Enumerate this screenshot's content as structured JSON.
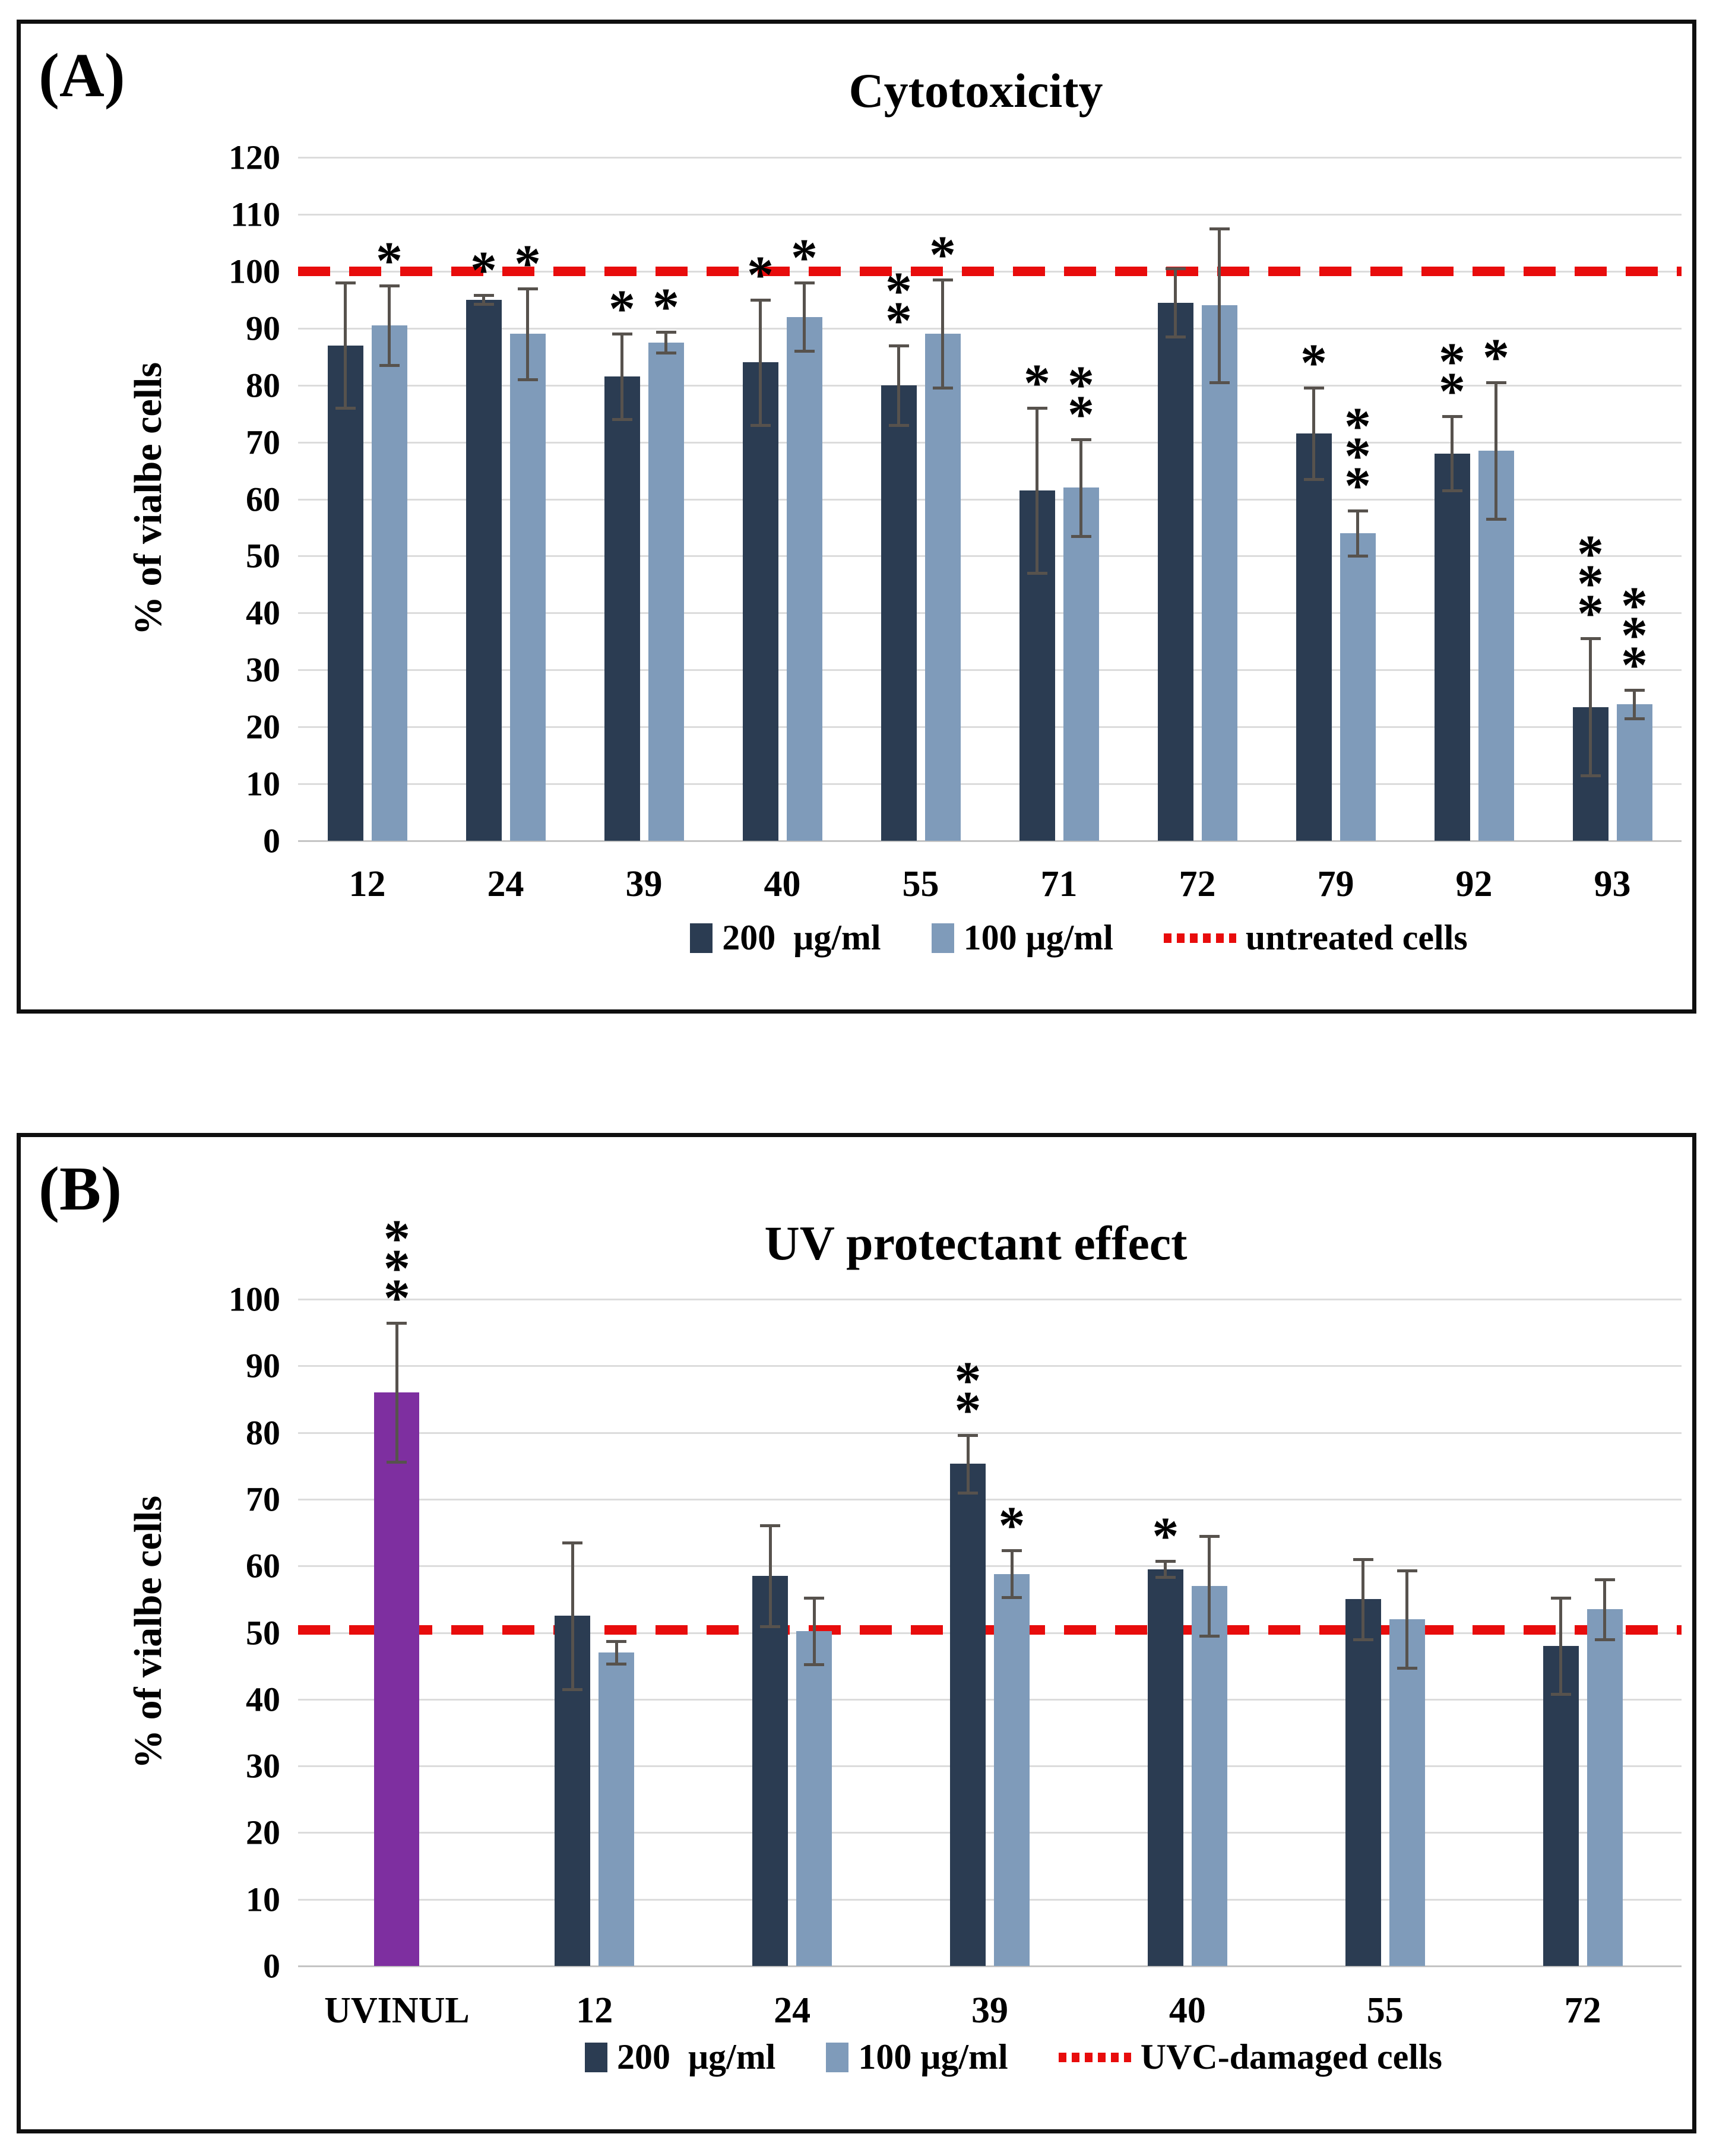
{
  "figure": {
    "background": "#ffffff",
    "border_color": "#0f0f0f"
  },
  "colors": {
    "series_200": "#2b3c52",
    "series_100": "#7f9bba",
    "uvinul_bar": "#7e2fa0",
    "reference_line": "#e80c0c",
    "error_bar": "#57524d",
    "gridline": "#dcdcdc"
  },
  "chart_data": [
    {
      "panel_label": "(A)",
      "type": "bar",
      "title": "Cytotoxicity",
      "ylabel": "% of vialbe cells",
      "ylim": [
        0,
        120
      ],
      "ytick_step": 10,
      "grid": true,
      "legend_position": "bottom",
      "categories": [
        "12",
        "24",
        "39",
        "40",
        "55",
        "71",
        "72",
        "79",
        "92",
        "93"
      ],
      "series": [
        {
          "name": "200  μg/ml",
          "color": "#2b3c52",
          "values": [
            87,
            95,
            81.5,
            84,
            80,
            61.5,
            94.5,
            71.5,
            68,
            23.5
          ],
          "errors": [
            11,
            0.8,
            7.5,
            11,
            7,
            14.5,
            6,
            8,
            6.5,
            12
          ],
          "stars": [
            "",
            "*",
            "*",
            "*",
            "**",
            "*",
            "",
            "*",
            "**",
            "***"
          ]
        },
        {
          "name": "100 μg/ml",
          "color": "#7f9bba",
          "values": [
            90.5,
            89,
            87.5,
            92,
            89,
            62,
            94,
            54,
            68.5,
            24
          ],
          "errors": [
            7,
            8,
            1.8,
            6,
            9.5,
            8.5,
            13.5,
            4,
            12,
            2.5
          ],
          "stars": [
            "*",
            "*",
            "*",
            "*",
            "*",
            "**",
            "",
            "***",
            "*",
            "***"
          ]
        }
      ],
      "highlight_bars": [],
      "reference_line": {
        "value": 100,
        "label": "untreated cells",
        "color": "#e80c0c",
        "style": "dashed"
      }
    },
    {
      "panel_label": "(B)",
      "type": "bar",
      "title": "UV protectant effect",
      "ylabel": "% of vialbe cells",
      "ylim": [
        0,
        100
      ],
      "ytick_step": 10,
      "grid": true,
      "legend_position": "bottom",
      "categories": [
        "UVINUL",
        "12",
        "24",
        "39",
        "40",
        "55",
        "72"
      ],
      "series": [
        {
          "name": "200  μg/ml",
          "color": "#2b3c52",
          "values": [
            null,
            52.5,
            58.5,
            75.3,
            59.5,
            55,
            48
          ],
          "errors": [
            null,
            11,
            7.6,
            4.3,
            1.2,
            6,
            7.2
          ],
          "stars": [
            "",
            "",
            "",
            "**",
            "*",
            "",
            ""
          ]
        },
        {
          "name": "100 μg/ml",
          "color": "#7f9bba",
          "values": [
            null,
            47,
            50.2,
            58.8,
            57,
            52,
            53.5
          ],
          "errors": [
            null,
            1.7,
            5,
            3.5,
            7.5,
            7.3,
            4.5
          ],
          "stars": [
            "",
            "",
            "",
            "*",
            "",
            "",
            ""
          ]
        }
      ],
      "highlight_bars": [
        {
          "category": "UVINUL",
          "value": 86,
          "error": 10.4,
          "stars": "***",
          "color": "#7e2fa0"
        }
      ],
      "reference_line": {
        "value": 50.4,
        "label": "UVC-damaged cells",
        "color": "#e80c0c",
        "style": "dashed"
      }
    }
  ]
}
